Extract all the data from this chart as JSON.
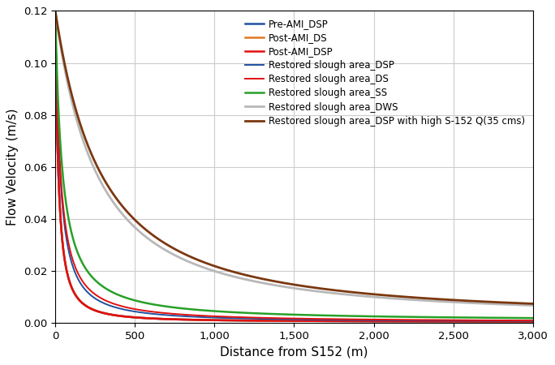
{
  "xlabel": "Distance from S152 (m)",
  "ylabel": "Flow Velocity (m/s)",
  "xlim": [
    0,
    3000
  ],
  "ylim": [
    0.0,
    0.12
  ],
  "xticks": [
    0,
    500,
    1000,
    1500,
    2000,
    2500,
    3000
  ],
  "yticks": [
    0.0,
    0.02,
    0.04,
    0.06,
    0.08,
    0.1,
    0.12
  ],
  "series": [
    {
      "label": "Pre-AMI_DSP",
      "color": "#2050a0",
      "linewidth": 1.8,
      "params": [
        0.12,
        30,
        1.48,
        0.0005
      ]
    },
    {
      "label": "Post-AMI_DS",
      "color": "#e07820",
      "linewidth": 1.8,
      "params": [
        0.12,
        30,
        1.48,
        0.0005
      ]
    },
    {
      "label": "Post-AMI_DSP",
      "color": "#e01010",
      "linewidth": 1.8,
      "params": [
        0.12,
        30,
        1.48,
        0.0005
      ]
    },
    {
      "label": "Restored slough area_DSP",
      "color": "#2050a0",
      "linewidth": 1.4,
      "params": [
        0.12,
        40,
        1.3,
        0.0004
      ]
    },
    {
      "label": "Restored slough area_DS",
      "color": "#e01010",
      "linewidth": 1.4,
      "params": [
        0.12,
        40,
        1.22,
        0.0004
      ]
    },
    {
      "label": "Restored slough area_SS",
      "color": "#28a028",
      "linewidth": 1.8,
      "params": [
        0.12,
        50,
        1.13,
        0.0008
      ]
    },
    {
      "label": "Restored slough area_DWS",
      "color": "#b8b8b8",
      "linewidth": 2.0,
      "params": [
        0.12,
        390,
        1.48,
        0.002
      ]
    },
    {
      "label": "Restored slough area_DSP with high S-152 Q(35 cms)",
      "color": "#7B3810",
      "linewidth": 2.0,
      "params": [
        0.12,
        430,
        1.48,
        0.002
      ]
    }
  ],
  "background_color": "#ffffff",
  "grid_color": "#cccccc",
  "legend_fontsize": 8.5,
  "axis_fontsize": 11,
  "tick_fontsize": 9.5
}
